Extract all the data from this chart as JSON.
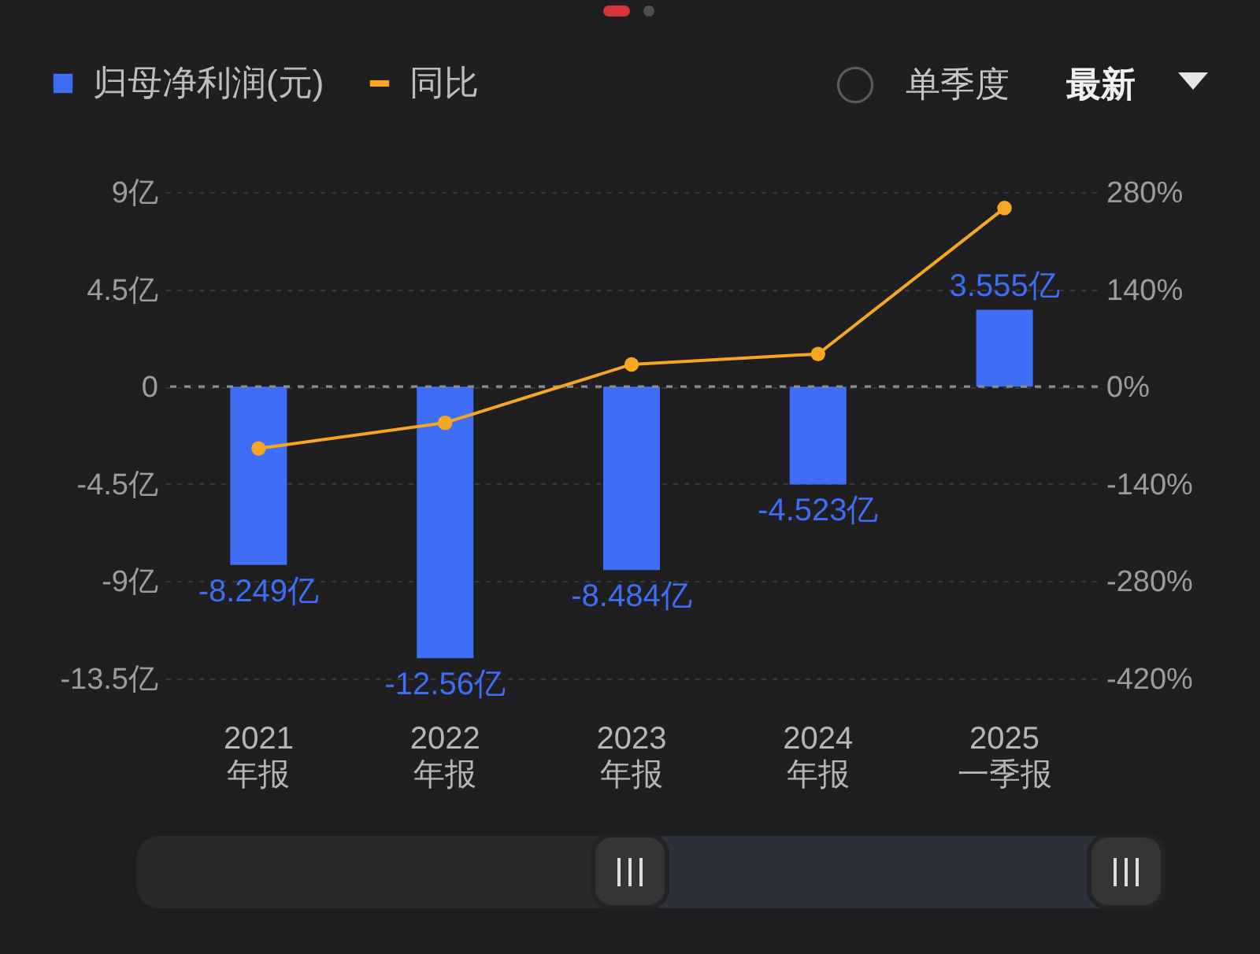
{
  "chart_data": {
    "type": "bar",
    "categories": [
      "2021 年报",
      "2022 年报",
      "2023 年报",
      "2024 年报",
      "2025 一季报"
    ],
    "series": [
      {
        "name": "归母净利润(元)",
        "color": "#3d6ef5",
        "values": [
          -8.249,
          -12.56,
          -8.484,
          -4.523,
          3.555
        ],
        "value_labels": [
          "-8.249亿",
          "-12.56亿",
          "-8.484亿",
          "-4.523亿",
          "3.555亿"
        ]
      },
      {
        "name": "同比",
        "type": "line",
        "axis": "y2",
        "color": "#f5a623",
        "values": [
          -89,
          -52,
          32,
          47,
          257
        ]
      }
    ],
    "ylim": [
      -13.5,
      9
    ],
    "yticks": [
      {
        "value": -13.5,
        "label": "-13.5亿"
      },
      {
        "value": -9,
        "label": "-9亿"
      },
      {
        "value": -4.5,
        "label": "-4.5亿"
      },
      0,
      {
        "value": 4.5,
        "label": "4.5亿"
      },
      {
        "value": 9,
        "label": "9亿"
      }
    ],
    "y2lim": [
      -420,
      280
    ],
    "y2ticks": [
      {
        "value": -420,
        "label": "-420%"
      },
      {
        "value": -280,
        "label": "-280%"
      },
      {
        "value": -140,
        "label": "-140%"
      },
      {
        "value": 0,
        "label": "0%"
      },
      {
        "value": 140,
        "label": "140%"
      },
      {
        "value": 280,
        "label": "280%"
      }
    ],
    "ref_lines": [
      {
        "axis": "y",
        "value": 0,
        "color": "#8c8c8c",
        "line_style": "dashed"
      }
    ],
    "grid": "y",
    "legend": "top left",
    "marker": "circle",
    "annotations": [
      "单季度",
      "最新"
    ]
  }
}
